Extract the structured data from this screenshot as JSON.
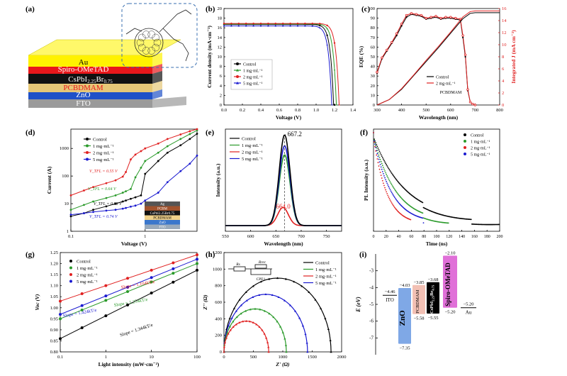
{
  "chart_data": [
    {
      "panel": "(a)",
      "type": "device-stack",
      "layers": [
        "Au",
        "Spiro-OMeTAD",
        "CsPbI2.25Br0.75",
        "PCBDMAM",
        "ZnO",
        "FTO"
      ],
      "layer_colors": [
        "#fff200",
        "#e8171b",
        "#111111",
        "#e6c777",
        "#1f51c8",
        "#9a9a9a"
      ],
      "layer_text_colors": [
        "#000000",
        "#ffffff",
        "#ffffff",
        "#e8171b",
        "#ffffff",
        "#ffffff"
      ],
      "inset": "PCBDMAM molecular structure"
    },
    {
      "panel": "(b)",
      "type": "line",
      "xlabel": "Voltage (V)",
      "ylabel": "Current density (mA·cm⁻²)",
      "xlim": [
        0.0,
        1.4
      ],
      "ylim": [
        0,
        20
      ],
      "xticks": [
        "0.0",
        "0.2",
        "0.4",
        "0.6",
        "0.8",
        "1.0",
        "1.2",
        "1.4"
      ],
      "yticks": [
        "0",
        "2",
        "4",
        "6",
        "8",
        "10",
        "12",
        "14",
        "16",
        "18",
        "20"
      ],
      "series": [
        {
          "name": "Control",
          "color": "#000000",
          "jsc": 16.7,
          "voc": 1.19
        },
        {
          "name": "1 mg·mL⁻¹",
          "color": "#2a9a2a",
          "jsc": 16.8,
          "voc": 1.22
        },
        {
          "name": "2 mg·mL⁻¹",
          "color": "#e02020",
          "jsc": 16.9,
          "voc": 1.25
        },
        {
          "name": "5 mg·mL⁻¹",
          "color": "#1a1ad0",
          "jsc": 16.4,
          "voc": 1.17
        }
      ]
    },
    {
      "panel": "(c)",
      "type": "line",
      "xlabel": "Wavelength (nm)",
      "ylabel": "EQE (%)",
      "y2label": "Integrated J (mA cm⁻²)",
      "xlim": [
        300,
        800
      ],
      "ylim": [
        0,
        100
      ],
      "y2lim": [
        0,
        16
      ],
      "xticks": [
        "300",
        "400",
        "500",
        "600",
        "700",
        "800"
      ],
      "yticks": [
        "0",
        "10",
        "20",
        "30",
        "40",
        "50",
        "60",
        "70",
        "80",
        "90",
        "100"
      ],
      "y2ticks": [
        "0",
        "2",
        "4",
        "6",
        "8",
        "10",
        "12",
        "14",
        "16"
      ],
      "legend": [
        "Control",
        "2 mg·mL⁻¹",
        "PCBDMAM"
      ],
      "eqe_x": [
        300,
        320,
        340,
        360,
        380,
        400,
        420,
        440,
        460,
        480,
        500,
        520,
        540,
        560,
        580,
        600,
        620,
        640,
        650,
        660,
        670,
        680,
        690,
        700
      ],
      "eqe_control": [
        33,
        48,
        56,
        64,
        72,
        82,
        91,
        94,
        93,
        92,
        89,
        90,
        91,
        89,
        90,
        90,
        89,
        88,
        70,
        50,
        15,
        3,
        1,
        0
      ],
      "eqe_2mg": [
        34,
        49,
        57,
        65,
        74,
        84,
        93,
        95,
        94,
        93,
        90,
        91,
        92,
        90,
        91,
        91,
        90,
        89,
        72,
        52,
        16,
        3,
        1,
        0
      ],
      "jint_x": [
        300,
        350,
        400,
        450,
        500,
        550,
        600,
        650,
        680,
        700,
        800
      ],
      "jint_control": [
        0,
        0.9,
        2.6,
        4.9,
        7.2,
        9.5,
        11.9,
        14.3,
        15.2,
        15.3,
        15.3
      ],
      "jint_2mg": [
        0,
        0.9,
        2.7,
        5.0,
        7.4,
        9.7,
        12.1,
        14.6,
        15.5,
        15.6,
        15.6
      ]
    },
    {
      "panel": "(d)",
      "type": "line-log",
      "xlabel": "Voltage (V)",
      "ylabel": "Current (A)",
      "xlim_log": [
        0.1,
        5
      ],
      "ylim_log": [
        1,
        5000
      ],
      "xticks": [
        "0.1",
        "1"
      ],
      "yticks": [
        "1",
        "10",
        "100",
        "1000"
      ],
      "legend": [
        "Control",
        "1 mg·mL⁻¹",
        "2 mg·mL⁻¹",
        "5 mg·mL⁻¹"
      ],
      "colors": [
        "#000000",
        "#2a9a2a",
        "#e02020",
        "#1a1ad0"
      ],
      "vtfl_labels": [
        "V_TFL = 0.55 V",
        "V_TFL = 0.64 V",
        "V_TFL = 0.88 V",
        "V_TFL = 0.74 V"
      ],
      "inset_layers": [
        "Ag",
        "PCBM",
        "CsPbI2.25Br0.75",
        "PCBDMAM",
        "ZnO",
        "FTO"
      ],
      "curves": {
        "v": [
          0.1,
          0.15,
          0.2,
          0.3,
          0.4,
          0.5,
          0.55,
          0.64,
          0.74,
          0.88,
          1.0,
          1.5,
          2.0,
          3.0,
          4.0,
          5.0
        ],
        "control": [
          3.5,
          4.5,
          6,
          8,
          10,
          12,
          13,
          15,
          17,
          20,
          120,
          350,
          700,
          1300,
          2200,
          3400
        ],
        "1mg": [
          6,
          9,
          12,
          16,
          20,
          25,
          28,
          34,
          90,
          200,
          350,
          700,
          1200,
          2200,
          3300,
          4500
        ],
        "2mg": [
          20,
          30,
          40,
          55,
          70,
          95,
          140,
          400,
          600,
          800,
          1000,
          1500,
          2200,
          3200,
          4200,
          5000
        ],
        "5mg": [
          4,
          4.5,
          5,
          5.6,
          6,
          6.6,
          7,
          7.8,
          8.5,
          10,
          13,
          25,
          60,
          150,
          280,
          550
        ]
      }
    },
    {
      "panel": "(e)",
      "type": "line",
      "xlabel": "Wavelength (nm)",
      "ylabel": "Intensity (a.u.)",
      "xlim": [
        550,
        780
      ],
      "xticks": [
        "550",
        "600",
        "650",
        "700",
        "750"
      ],
      "legend": [
        "Control",
        "1 mg·mL⁻¹",
        "2 mg·mL⁻¹",
        "5 mg·mL⁻¹"
      ],
      "colors": [
        "#000000",
        "#2a9a2a",
        "#e02020",
        "#1a1ad0"
      ],
      "peak_labels": [
        "667.2",
        "664.0"
      ],
      "peaks": [
        {
          "center": 667.2,
          "height": 1.0
        },
        {
          "center": 667.2,
          "height": 0.78
        },
        {
          "center": 664.0,
          "height": 0.2
        },
        {
          "center": 667.2,
          "height": 0.88
        }
      ]
    },
    {
      "panel": "(f)",
      "type": "scatter",
      "xlabel": "Time (ns)",
      "ylabel": "PL Intensity (a.u.)",
      "xlim": [
        0,
        200
      ],
      "xticks": [
        "0",
        "20",
        "40",
        "60",
        "80",
        "100",
        "120",
        "140",
        "160",
        "180",
        "200"
      ],
      "legend": [
        "Control",
        "1 mg·mL⁻¹",
        "2 mg·mL⁻¹",
        "5 mg·mL⁻¹"
      ],
      "colors": [
        "#000000",
        "#2a9a2a",
        "#e02020",
        "#1a1ad0"
      ],
      "tau_ns": [
        55,
        38,
        22,
        30
      ],
      "tmax_ns": [
        200,
        120,
        60,
        80
      ]
    },
    {
      "panel": "(g)",
      "type": "scatter-fit",
      "xlabel": "Light intensity (mW·cm⁻²)",
      "ylabel": "Voc (V)",
      "xlim_log": [
        0.1,
        100
      ],
      "ylim": [
        0.8,
        1.25
      ],
      "xticks": [
        "0.1",
        "1",
        "10",
        "100"
      ],
      "yticks": [
        "0.80",
        "0.85",
        "0.90",
        "0.95",
        "1.00",
        "1.05",
        "1.10",
        "1.15",
        "1.20",
        "1.25"
      ],
      "legend": [
        "Control",
        "1 mg·mL⁻¹",
        "2 mg·mL⁻¹",
        "5 mg·mL⁻¹"
      ],
      "colors": [
        "#000000",
        "#2a9a2a",
        "#e02020",
        "#1a1ad0"
      ],
      "slope_labels": [
        "Slope = 1.344kT/e",
        "Slope = 1.254kT/e",
        "Slope = 1.104kT/e",
        "Slope = 1.424kT/e"
      ],
      "voc_at_0p1": [
        0.86,
        0.95,
        1.03,
        0.97
      ],
      "voc_at_100": [
        1.17,
        1.2,
        1.24,
        1.22
      ]
    },
    {
      "panel": "(h)",
      "type": "scatter-fit",
      "xlabel": "Z' (Ω)",
      "ylabel": "Z'' (Ω)",
      "xlim": [
        0,
        2000
      ],
      "ylim": [
        0,
        1200
      ],
      "xticks": [
        "0",
        "500",
        "1000",
        "1500",
        "2000"
      ],
      "yticks": [
        "0",
        "200",
        "400",
        "600",
        "800",
        "1000",
        "1200"
      ],
      "legend": [
        "Control",
        "1 mg·mL⁻¹",
        "2 mg·mL⁻¹",
        "5 mg·mL⁻¹"
      ],
      "colors": [
        "#000000",
        "#2a9a2a",
        "#e02020",
        "#1a1ad0"
      ],
      "rrec_ohm": [
        1820,
        1060,
        760,
        1420
      ],
      "circuit_labels": [
        "Rs",
        "Rrec",
        "CPE1"
      ]
    },
    {
      "panel": "(i)",
      "type": "energy-levels",
      "ylabel": "E (eV)",
      "ylim": [
        -8,
        -2
      ],
      "yticks": [
        "-3",
        "-4",
        "-5",
        "-6",
        "-7"
      ],
      "materials": [
        {
          "name": "ITO",
          "level": -4.46,
          "label": "−4.46"
        },
        {
          "name": "ZnO",
          "cb": -4.03,
          "vb": -7.35,
          "cb_label": "−4.03",
          "vb_label": "−7.35",
          "color": "#7fa8e6"
        },
        {
          "name": "PCBDMAM",
          "cb": -3.85,
          "vb": -5.58,
          "cb_label": "−3.85",
          "vb_label": "−5.58",
          "color": "#f2c0b4"
        },
        {
          "name": "CsPbI2.25Br0.75",
          "cb": -3.68,
          "vb": -5.55,
          "cb_label": "−3.68",
          "vb_label": "−5.55",
          "color": "#000000"
        },
        {
          "name": "Spiro-OMeTAD",
          "cb": -2.1,
          "vb": -5.2,
          "cb_label": "−2.10",
          "vb_label": "−5.20",
          "color": "#e070d8"
        },
        {
          "name": "Au",
          "level": -5.2,
          "label": "−5.20"
        }
      ]
    }
  ],
  "panel_labels": [
    "(a)",
    "(b)",
    "(c)",
    "(d)",
    "(e)",
    "(f)",
    "(g)",
    "(h)",
    "(i)"
  ]
}
